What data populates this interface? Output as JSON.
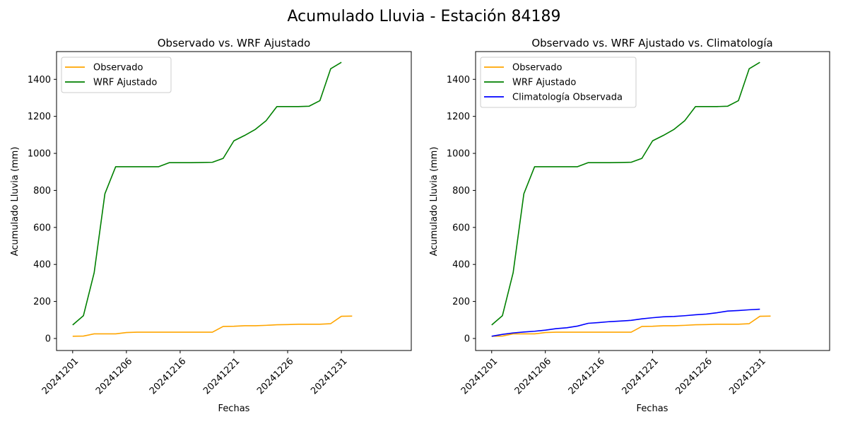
{
  "figure": {
    "suptitle": "Acumulado Lluvia - Estación 84189"
  },
  "colors": {
    "observado": "#FFA500",
    "wrf": "#008000",
    "clima": "#0000FF",
    "axis": "#000000",
    "legend_border": "#cccccc"
  },
  "chart_data": [
    {
      "type": "line",
      "title": "Observado vs. WRF Ajustado",
      "xlabel": "Fechas",
      "ylabel": "Acumulado Lluvia (mm)",
      "xlim": [
        -1.5,
        31.5
      ],
      "ylim": [
        -65,
        1550
      ],
      "xticks": [
        0,
        5,
        10,
        15,
        20,
        25
      ],
      "xtick_labels": [
        "20241201",
        "20241206",
        "20241216",
        "20241221",
        "20241226",
        "20241231"
      ],
      "yticks": [
        0,
        200,
        400,
        600,
        800,
        1000,
        1200,
        1400
      ],
      "ytick_labels": [
        "0",
        "200",
        "400",
        "600",
        "800",
        "1000",
        "1200",
        "1400"
      ],
      "legend_loc": "upper left",
      "series": [
        {
          "name": "Observado",
          "color_key": "observado",
          "values": [
            12,
            13,
            25,
            25,
            25,
            32,
            34,
            34,
            34,
            34,
            34,
            34,
            34,
            34,
            65,
            66,
            69,
            69,
            71,
            74,
            75,
            77,
            77,
            77,
            80,
            120,
            121
          ]
        },
        {
          "name": "WRF Ajustado",
          "color_key": "wrf",
          "values": [
            73,
            123,
            355,
            782,
            928,
            928,
            928,
            928,
            928,
            950,
            950,
            950,
            951,
            952,
            973,
            1068,
            1097,
            1130,
            1177,
            1253,
            1253,
            1253,
            1255,
            1285,
            1457,
            1492
          ]
        }
      ]
    },
    {
      "type": "line",
      "title": "Observado vs. WRF Ajustado vs. Climatología",
      "xlabel": "Fechas",
      "ylabel": "Acumulado Lluvia (mm)",
      "xlim": [
        -1.5,
        31.5
      ],
      "ylim": [
        -65,
        1550
      ],
      "xticks": [
        0,
        5,
        10,
        15,
        20,
        25
      ],
      "xtick_labels": [
        "20241201",
        "20241206",
        "20241216",
        "20241221",
        "20241226",
        "20241231"
      ],
      "yticks": [
        0,
        200,
        400,
        600,
        800,
        1000,
        1200,
        1400
      ],
      "ytick_labels": [
        "0",
        "200",
        "400",
        "600",
        "800",
        "1000",
        "1200",
        "1400"
      ],
      "legend_loc": "upper left",
      "series": [
        {
          "name": "Observado",
          "color_key": "observado",
          "values": [
            12,
            13,
            25,
            25,
            25,
            32,
            34,
            34,
            34,
            34,
            34,
            34,
            34,
            34,
            65,
            66,
            69,
            69,
            71,
            74,
            75,
            77,
            77,
            77,
            80,
            120,
            121
          ]
        },
        {
          "name": "WRF Ajustado",
          "color_key": "wrf",
          "values": [
            73,
            123,
            355,
            782,
            928,
            928,
            928,
            928,
            928,
            950,
            950,
            950,
            951,
            952,
            973,
            1068,
            1097,
            1130,
            1177,
            1253,
            1253,
            1253,
            1255,
            1285,
            1457,
            1492
          ]
        },
        {
          "name": "Climatología Observada",
          "color_key": "clima",
          "values": [
            12,
            22,
            30,
            35,
            39,
            45,
            53,
            58,
            67,
            82,
            86,
            91,
            94,
            98,
            106,
            112,
            117,
            119,
            123,
            128,
            132,
            139,
            148,
            151,
            155,
            158
          ]
        }
      ]
    }
  ]
}
